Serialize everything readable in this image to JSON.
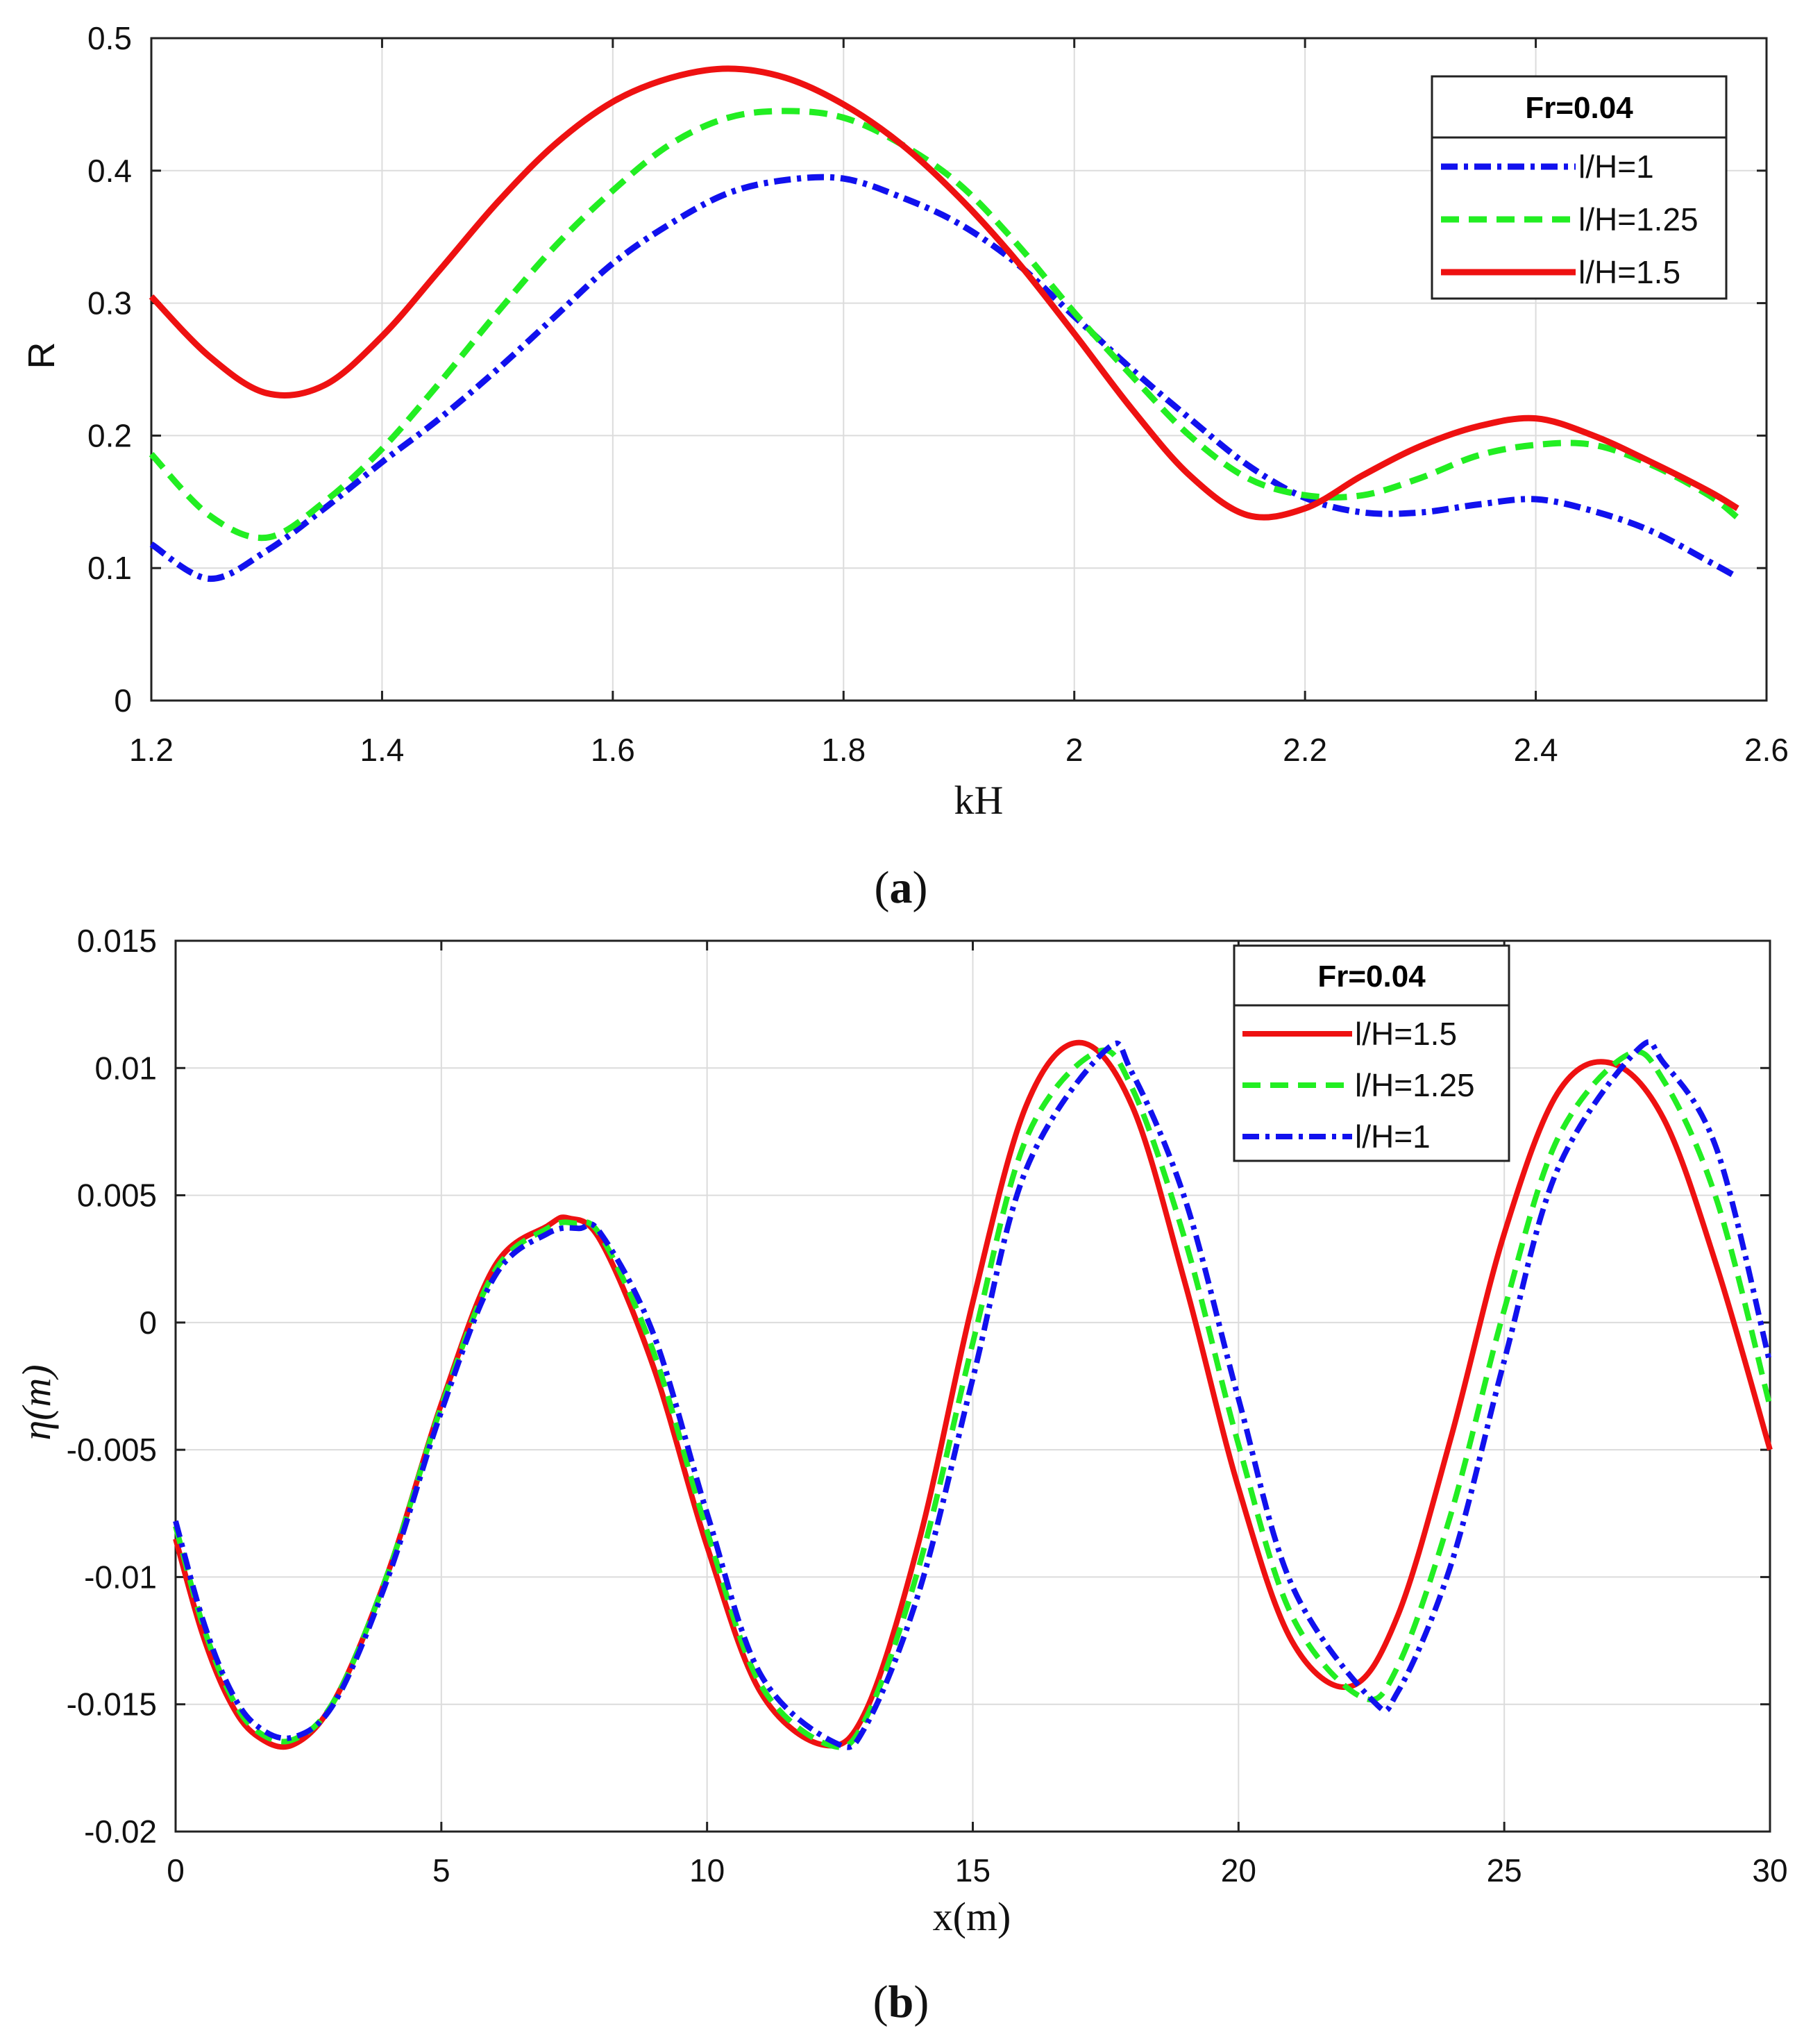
{
  "colors": {
    "red": "#ee1111",
    "green": "#22ee22",
    "blue": "#1111ee",
    "grid": "#dcdcdc",
    "axis": "#222222"
  },
  "chart_data": [
    {
      "type": "line",
      "panel_label": "a",
      "xlabel": "kH",
      "ylabel": "R",
      "xlim": [
        1.2,
        2.6
      ],
      "ylim": [
        0,
        0.5
      ],
      "xticks": [
        1.2,
        1.4,
        1.6,
        1.8,
        2,
        2.2,
        2.4,
        2.6
      ],
      "xtick_labels": [
        "1.2",
        "1.4",
        "1.6",
        "1.8",
        "2",
        "2.2",
        "2.4",
        "2.6"
      ],
      "yticks": [
        0,
        0.1,
        0.2,
        0.3,
        0.4,
        0.5
      ],
      "ytick_labels": [
        "0",
        "0.1",
        "0.2",
        "0.3",
        "0.4",
        "0.5"
      ],
      "grid": true,
      "legend": {
        "title": "Fr=0.04",
        "position": "top-right"
      },
      "series": [
        {
          "name": "l/H=1",
          "color": "blue",
          "style": "dashdot",
          "x": [
            1.2,
            1.25,
            1.3,
            1.35,
            1.4,
            1.45,
            1.5,
            1.55,
            1.6,
            1.65,
            1.7,
            1.75,
            1.8,
            1.85,
            1.9,
            1.95,
            2.0,
            2.05,
            2.1,
            2.15,
            2.2,
            2.25,
            2.3,
            2.35,
            2.4,
            2.45,
            2.5,
            2.55,
            2.575
          ],
          "y": [
            0.118,
            0.092,
            0.113,
            0.145,
            0.18,
            0.213,
            0.25,
            0.29,
            0.33,
            0.36,
            0.383,
            0.393,
            0.394,
            0.38,
            0.36,
            0.33,
            0.29,
            0.25,
            0.213,
            0.178,
            0.153,
            0.142,
            0.142,
            0.148,
            0.152,
            0.143,
            0.128,
            0.105,
            0.093
          ]
        },
        {
          "name": "l/H=1.25",
          "color": "green",
          "style": "dashed",
          "x": [
            1.2,
            1.25,
            1.3,
            1.35,
            1.4,
            1.45,
            1.5,
            1.55,
            1.6,
            1.65,
            1.7,
            1.75,
            1.8,
            1.85,
            1.9,
            1.95,
            2.0,
            2.05,
            2.1,
            2.15,
            2.2,
            2.25,
            2.3,
            2.35,
            2.4,
            2.45,
            2.5,
            2.55,
            2.575
          ],
          "y": [
            0.186,
            0.14,
            0.123,
            0.15,
            0.19,
            0.24,
            0.293,
            0.343,
            0.385,
            0.42,
            0.44,
            0.445,
            0.44,
            0.42,
            0.39,
            0.345,
            0.293,
            0.245,
            0.2,
            0.168,
            0.155,
            0.155,
            0.168,
            0.185,
            0.193,
            0.193,
            0.178,
            0.155,
            0.138
          ]
        },
        {
          "name": "l/H=1.5",
          "color": "red",
          "style": "solid",
          "x": [
            1.2,
            1.25,
            1.3,
            1.35,
            1.4,
            1.45,
            1.5,
            1.55,
            1.6,
            1.65,
            1.7,
            1.75,
            1.8,
            1.85,
            1.9,
            1.95,
            2.0,
            2.05,
            2.1,
            2.15,
            2.2,
            2.25,
            2.3,
            2.35,
            2.4,
            2.45,
            2.5,
            2.55,
            2.575
          ],
          "y": [
            0.305,
            0.26,
            0.232,
            0.238,
            0.275,
            0.325,
            0.376,
            0.42,
            0.452,
            0.47,
            0.477,
            0.47,
            0.45,
            0.42,
            0.38,
            0.332,
            0.277,
            0.22,
            0.17,
            0.14,
            0.145,
            0.17,
            0.192,
            0.207,
            0.213,
            0.2,
            0.18,
            0.158,
            0.145
          ]
        }
      ]
    },
    {
      "type": "line",
      "panel_label": "b",
      "xlabel": "x(m)",
      "ylabel": "η(m)",
      "xlim": [
        0,
        30
      ],
      "ylim": [
        -0.02,
        0.015
      ],
      "xticks": [
        0,
        5,
        10,
        15,
        20,
        25,
        30
      ],
      "xtick_labels": [
        "0",
        "5",
        "10",
        "15",
        "20",
        "25",
        "30"
      ],
      "yticks": [
        -0.02,
        -0.015,
        -0.01,
        -0.005,
        0,
        0.005,
        0.01,
        0.015
      ],
      "ytick_labels": [
        "-0.02",
        "-0.015",
        "-0.01",
        "-0.005",
        "0",
        "0.005",
        "0.01",
        "0.015"
      ],
      "grid": true,
      "legend": {
        "title": "Fr=0.04",
        "position": "top-right"
      },
      "series": [
        {
          "name": "l/H=1.5",
          "color": "red",
          "style": "solid",
          "x": [
            0,
            0.5,
            1,
            1.5,
            2.2,
            3,
            4,
            5,
            6,
            7,
            7.4,
            8,
            9,
            10,
            11,
            12.2,
            13,
            14,
            15,
            16,
            17,
            18,
            19,
            20,
            21,
            22.1,
            23,
            24,
            25,
            26,
            27,
            28,
            29,
            30
          ],
          "x_note": "",
          "y": [
            -0.0085,
            -0.0122,
            -0.0148,
            -0.0162,
            -0.0166,
            -0.0148,
            -0.0098,
            -0.0032,
            0.0022,
            0.0038,
            0.0041,
            0.0032,
            -0.0018,
            -0.0088,
            -0.0145,
            -0.0166,
            -0.0152,
            -0.0085,
            0.0008,
            0.0085,
            0.011,
            0.0085,
            0.0015,
            -0.0065,
            -0.0125,
            -0.0143,
            -0.0115,
            -0.0045,
            0.0035,
            0.009,
            0.0102,
            0.008,
            0.0022,
            -0.005
          ]
        },
        {
          "name": "l/H=1.25",
          "color": "green",
          "style": "dashed",
          "x": [
            0,
            0.5,
            1,
            1.5,
            2.2,
            3,
            4,
            5,
            6,
            7,
            7.5,
            8,
            9,
            10,
            11,
            12.3,
            13,
            14,
            15,
            16,
            17.3,
            18,
            19,
            20,
            21,
            22.3,
            23,
            24,
            25,
            26,
            27.3,
            28,
            29,
            30
          ],
          "y": [
            -0.008,
            -0.0118,
            -0.0145,
            -0.016,
            -0.0164,
            -0.0148,
            -0.0098,
            -0.0033,
            0.002,
            0.0037,
            0.0039,
            0.0034,
            -0.0012,
            -0.0082,
            -0.0142,
            -0.0166,
            -0.0155,
            -0.0095,
            -0.0008,
            0.0072,
            0.0106,
            0.0092,
            0.0032,
            -0.0048,
            -0.0115,
            -0.0147,
            -0.0135,
            -0.0075,
            0.0005,
            0.0072,
            0.0105,
            0.0095,
            0.0048,
            -0.0033
          ]
        },
        {
          "name": "l/H=1",
          "color": "blue",
          "style": "dashdot",
          "x": [
            0,
            0.5,
            1,
            1.5,
            2.2,
            3,
            4,
            5,
            6,
            7,
            7.6,
            8,
            9,
            10,
            11,
            12.4,
            13,
            14,
            15,
            16,
            17.5,
            18,
            19,
            20,
            21,
            22.5,
            23,
            24,
            25,
            26,
            27.5,
            28,
            29,
            30
          ],
          "y": [
            -0.0078,
            -0.0116,
            -0.0143,
            -0.0158,
            -0.0163,
            -0.0149,
            -0.01,
            -0.0035,
            0.0018,
            0.0035,
            0.0037,
            0.0035,
            -0.0005,
            -0.0075,
            -0.0138,
            -0.0165,
            -0.0158,
            -0.0105,
            -0.0022,
            0.006,
            0.0107,
            0.0098,
            0.0048,
            -0.003,
            -0.0103,
            -0.0148,
            -0.0145,
            -0.0095,
            -0.0015,
            0.006,
            0.0107,
            0.0102,
            0.0068,
            -0.0016
          ]
        }
      ]
    }
  ]
}
